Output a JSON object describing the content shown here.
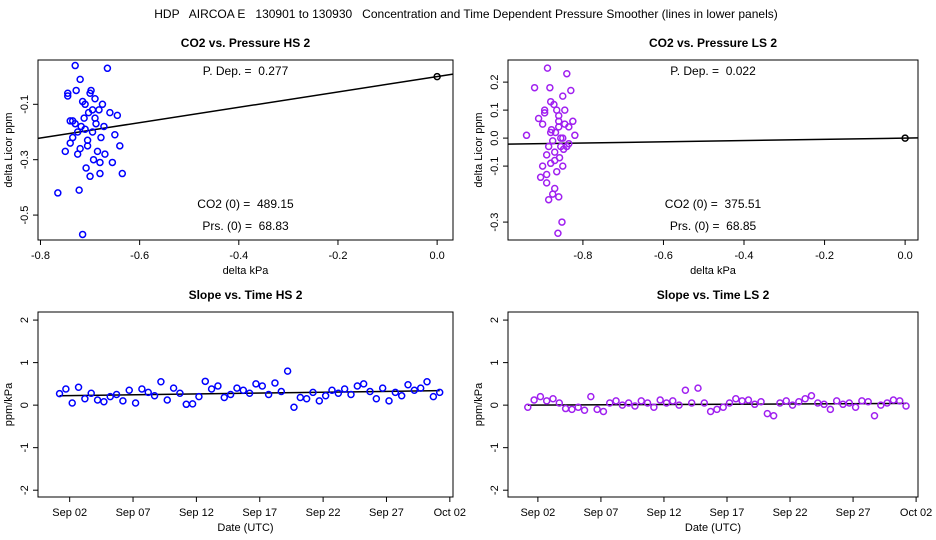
{
  "title": "HDP   AIRCOA E   130901 to 130930   Concentration and Time Dependent Pressure Smoother (lines in lower panels)",
  "chart_data": [
    {
      "type": "scatter",
      "title": "CO2 vs. Pressure HS 2",
      "xlabel": "delta kPa",
      "ylabel": "delta Licor ppm",
      "color": "#0000ff",
      "x": [
        -0.765,
        -0.75,
        -0.745,
        -0.74,
        -0.735,
        -0.73,
        -0.728,
        -0.725,
        -0.722,
        -0.72,
        -0.718,
        -0.715,
        -0.712,
        -0.71,
        -0.708,
        -0.705,
        -0.703,
        -0.7,
        -0.698,
        -0.695,
        -0.693,
        -0.69,
        -0.688,
        -0.685,
        -0.682,
        -0.68,
        -0.678,
        -0.675,
        -0.672,
        -0.67,
        -0.665,
        -0.66,
        -0.655,
        -0.65,
        -0.645,
        -0.64,
        -0.635,
        -0.73,
        -0.72,
        -0.71,
        -0.7,
        -0.69,
        -0.68,
        -0.715,
        -0.705,
        -0.695,
        -0.725,
        -0.735,
        -0.74,
        -0.745
      ],
      "values": [
        -0.42,
        -0.27,
        -0.07,
        -0.16,
        -0.22,
        0.04,
        -0.05,
        -0.28,
        -0.41,
        -0.01,
        -0.18,
        -0.57,
        -0.15,
        -0.1,
        -0.33,
        -0.25,
        -0.13,
        -0.36,
        -0.05,
        -0.2,
        -0.3,
        -0.08,
        -0.17,
        -0.27,
        -0.12,
        -0.35,
        -0.22,
        -0.1,
        -0.18,
        -0.28,
        0.03,
        -0.13,
        -0.31,
        -0.21,
        -0.14,
        -0.25,
        -0.35,
        -0.17,
        -0.26,
        -0.19,
        -0.06,
        -0.15,
        -0.31,
        -0.09,
        -0.23,
        -0.12,
        -0.2,
        -0.16,
        -0.24,
        -0.06
      ],
      "xlim": [
        -0.805,
        0.032
      ],
      "ylim": [
        -0.59,
        0.06
      ],
      "xticks": [
        -0.8,
        -0.6,
        -0.4,
        -0.2,
        {
          "value": 0,
          "label": "0.0"
        }
      ],
      "yticks": [
        -0.5,
        -0.3,
        -0.1
      ],
      "fit_line": {
        "slope": 0.277,
        "intercept": 0
      },
      "reference_point": {
        "x": 0,
        "y": 0
      },
      "annotations": [
        "P. Dep. =  0.277",
        "CO2 (0) =  489.15",
        "Prs. (0) =  68.83"
      ]
    },
    {
      "type": "scatter",
      "title": "CO2 vs. Pressure LS 2",
      "xlabel": "delta kPa",
      "ylabel": "delta Licor ppm",
      "color": "#a020f0",
      "x": [
        -0.94,
        -0.92,
        -0.91,
        -0.905,
        -0.9,
        -0.895,
        -0.89,
        -0.888,
        -0.885,
        -0.882,
        -0.88,
        -0.878,
        -0.875,
        -0.872,
        -0.87,
        -0.868,
        -0.865,
        -0.862,
        -0.86,
        -0.858,
        -0.855,
        -0.852,
        -0.85,
        -0.848,
        -0.845,
        -0.84,
        -0.835,
        -0.83,
        -0.825,
        -0.82,
        -0.89,
        -0.88,
        -0.87,
        -0.86,
        -0.85,
        -0.875,
        -0.865,
        -0.855,
        -0.885,
        -0.895,
        -0.9,
        -0.87,
        -0.86,
        -0.85,
        -0.84,
        -0.88,
        -0.89,
        -0.86,
        -0.845,
        -0.835
      ],
      "values": [
        0.01,
        0.18,
        0.07,
        -0.14,
        0.05,
        0.1,
        -0.16,
        0.25,
        -0.03,
        0.18,
        -0.09,
        0.03,
        -0.2,
        0.12,
        -0.05,
        0.02,
        -0.12,
        -0.34,
        0.08,
        -0.07,
        0.0,
        -0.3,
        0.15,
        -0.04,
        0.05,
        0.23,
        -0.02,
        0.17,
        0.06,
        0.01,
        -0.06,
        0.13,
        -0.18,
        0.04,
        -0.1,
        -0.01,
        0.1,
        -0.03,
        -0.22,
        0.09,
        -0.1,
        -0.08,
        0.06,
        0.0,
        -0.03,
        0.02,
        -0.13,
        -0.21,
        0.1,
        0.04
      ],
      "xlim": [
        -0.986,
        0.032
      ],
      "ylim": [
        -0.364,
        0.279
      ],
      "xticks": [
        -0.8,
        -0.6,
        -0.4,
        -0.2,
        {
          "value": 0,
          "label": "0.0"
        }
      ],
      "yticks": [
        -0.3,
        -0.1,
        {
          "value": 0,
          "label": "0.0"
        },
        0.1,
        0.2
      ],
      "fit_line": {
        "slope": 0.022,
        "intercept": 0
      },
      "reference_point": {
        "x": 0,
        "y": 0
      },
      "annotations": [
        "P. Dep. =  0.022",
        "CO2 (0) =  375.51",
        "Prs. (0) =  68.85"
      ]
    },
    {
      "type": "scatter",
      "title": "Slope vs. Time HS 2",
      "xlabel": "Date (UTC)",
      "ylabel": "ppm/kPa",
      "color": "#0000ff",
      "x": [
        1.2,
        1.7,
        2.2,
        2.7,
        3.2,
        3.7,
        4.2,
        4.7,
        5.2,
        5.7,
        6.2,
        6.7,
        7.2,
        7.7,
        8.2,
        8.7,
        9.2,
        9.7,
        10.2,
        10.7,
        11.2,
        11.7,
        12.2,
        12.7,
        13.2,
        13.7,
        14.2,
        14.7,
        15.2,
        15.7,
        16.2,
        16.7,
        17.2,
        17.7,
        18.2,
        18.7,
        19.2,
        19.7,
        20.2,
        20.7,
        21.2,
        21.7,
        22.2,
        22.7,
        23.2,
        23.7,
        24.2,
        24.7,
        25.2,
        25.7,
        26.2,
        26.7,
        27.2,
        27.7,
        28.2,
        28.7,
        29.2,
        29.7,
        30.2,
        30.7,
        31.2
      ],
      "values": [
        0.27,
        0.38,
        0.05,
        0.42,
        0.15,
        0.28,
        0.12,
        0.08,
        0.2,
        0.25,
        0.1,
        0.35,
        0.05,
        0.38,
        0.3,
        0.22,
        0.55,
        0.12,
        0.4,
        0.28,
        0.02,
        0.03,
        0.2,
        0.56,
        0.38,
        0.45,
        0.18,
        0.25,
        0.4,
        0.35,
        0.28,
        0.5,
        0.45,
        0.25,
        0.52,
        0.32,
        0.8,
        -0.05,
        0.18,
        0.15,
        0.3,
        0.1,
        0.22,
        0.35,
        0.28,
        0.38,
        0.25,
        0.45,
        0.5,
        0.32,
        0.15,
        0.4,
        0.1,
        0.3,
        0.22,
        0.48,
        0.35,
        0.4,
        0.55,
        0.2,
        0.3
      ],
      "xlim": [
        -0.5,
        32.25
      ],
      "ylim": [
        -2.16,
        2.19
      ],
      "xticks": [
        {
          "value": 2,
          "label": "Sep 02"
        },
        {
          "value": 7,
          "label": "Sep 07"
        },
        {
          "value": 12,
          "label": "Sep 12"
        },
        {
          "value": 17,
          "label": "Sep 17"
        },
        {
          "value": 22,
          "label": "Sep 22"
        },
        {
          "value": 27,
          "label": "Sep 27"
        },
        {
          "value": 32,
          "label": "Oct 02"
        }
      ],
      "yticks": [
        -2,
        -1,
        0,
        1,
        2
      ],
      "fit_line": {
        "x": [
          1.2,
          31.2
        ],
        "y": [
          0.22,
          0.34
        ]
      }
    },
    {
      "type": "scatter",
      "title": "Slope vs. Time LS 2",
      "xlabel": "Date (UTC)",
      "ylabel": "ppm/kPa",
      "color": "#a020f0",
      "x": [
        1.2,
        1.7,
        2.2,
        2.7,
        3.2,
        3.7,
        4.2,
        4.7,
        5.2,
        5.7,
        6.2,
        6.7,
        7.2,
        7.7,
        8.2,
        8.7,
        9.2,
        9.7,
        10.2,
        10.7,
        11.2,
        11.7,
        12.2,
        12.7,
        13.2,
        13.7,
        14.2,
        14.7,
        15.2,
        15.7,
        16.2,
        16.7,
        17.2,
        17.7,
        18.2,
        18.7,
        19.2,
        19.7,
        20.2,
        20.7,
        21.2,
        21.7,
        22.2,
        22.7,
        23.2,
        23.7,
        24.2,
        24.7,
        25.2,
        25.7,
        26.2,
        26.7,
        27.2,
        27.7,
        28.2,
        28.7,
        29.2,
        29.7,
        30.2,
        30.7,
        31.2
      ],
      "values": [
        -0.05,
        0.12,
        0.2,
        0.1,
        0.15,
        0.05,
        -0.08,
        -0.1,
        -0.05,
        -0.12,
        0.2,
        -0.1,
        -0.15,
        0.05,
        0.1,
        0.0,
        0.05,
        -0.02,
        0.1,
        0.05,
        -0.05,
        0.12,
        0.05,
        0.1,
        0.0,
        0.35,
        0.05,
        0.4,
        0.05,
        -0.15,
        -0.1,
        -0.05,
        0.05,
        0.15,
        0.1,
        0.12,
        0.02,
        0.08,
        -0.2,
        -0.25,
        0.05,
        0.1,
        0.0,
        0.08,
        0.15,
        0.22,
        0.05,
        0.02,
        -0.1,
        0.1,
        0.02,
        0.05,
        -0.05,
        0.1,
        0.08,
        -0.25,
        0.0,
        0.05,
        0.12,
        0.1,
        -0.02
      ],
      "xlim": [
        -0.37,
        32.15
      ],
      "ylim": [
        -2.16,
        2.19
      ],
      "xticks": [
        {
          "value": 2,
          "label": "Sep 02"
        },
        {
          "value": 7,
          "label": "Sep 07"
        },
        {
          "value": 12,
          "label": "Sep 12"
        },
        {
          "value": 17,
          "label": "Sep 17"
        },
        {
          "value": 22,
          "label": "Sep 22"
        },
        {
          "value": 27,
          "label": "Sep 27"
        },
        {
          "value": 32,
          "label": "Oct 02"
        }
      ],
      "yticks": [
        -2,
        -1,
        0,
        1,
        2
      ],
      "fit_line": {
        "x": [
          1.2,
          31.2
        ],
        "y": [
          0.0,
          0.04
        ]
      }
    }
  ]
}
